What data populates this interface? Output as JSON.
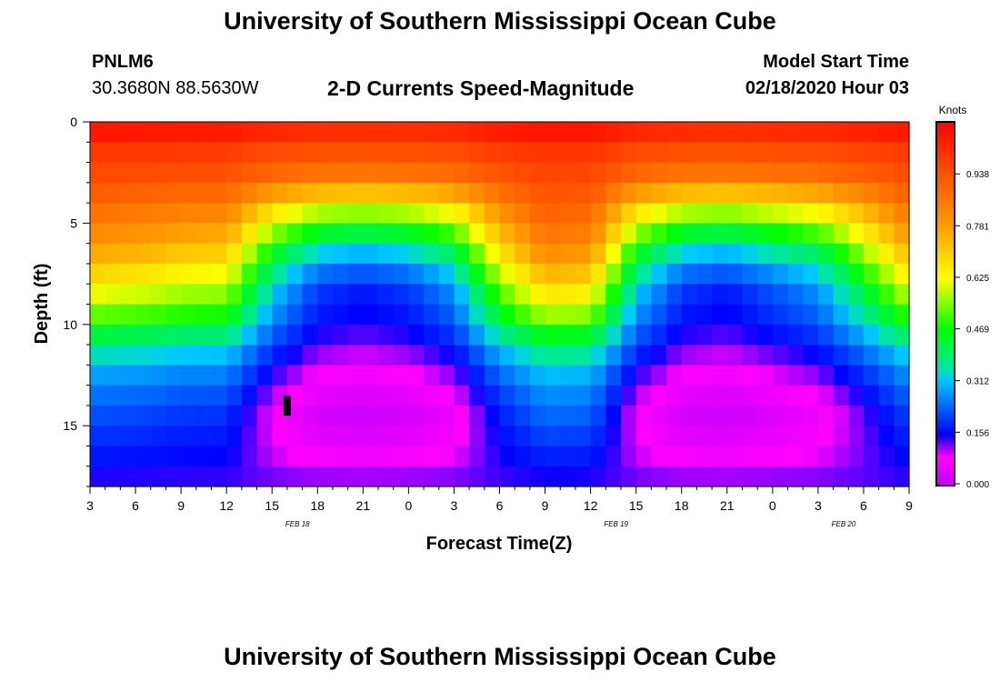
{
  "header": {
    "title": "University of Southern Mississippi Ocean Cube",
    "station_id": "PNLM6",
    "station_coords": "30.3680N 88.5630W",
    "plot_title": "2-D Currents Speed-Magnitude",
    "model_start_label": "Model Start Time",
    "model_start_value": "02/18/2020 Hour 03"
  },
  "footer": {
    "title": "University of Southern Mississippi Ocean Cube"
  },
  "chart_data": {
    "type": "heatmap",
    "title": "2-D Currents Speed-Magnitude",
    "xlabel": "Forecast Time(Z)",
    "ylabel": "Depth (ft)",
    "x_ticks": [
      "3",
      "6",
      "9",
      "12",
      "15",
      "18",
      "21",
      "0",
      "3",
      "6",
      "9",
      "12",
      "15",
      "18",
      "21",
      "0",
      "3",
      "6",
      "9"
    ],
    "date_labels": [
      {
        "text": "FEB 18",
        "tick_index": 5
      },
      {
        "text": "FEB 19",
        "tick_index": 12
      },
      {
        "text": "FEB 20",
        "tick_index": 17
      }
    ],
    "x_range_hours": [
      0,
      54
    ],
    "y_ticks": [
      "0",
      "5",
      "10",
      "15"
    ],
    "y_tick_values": [
      0,
      5,
      10,
      15
    ],
    "ylim_ft": [
      0,
      18
    ],
    "colorbar": {
      "label": "Knots",
      "ticks": [
        "0.000",
        "0.156",
        "0.312",
        "0.469",
        "0.625",
        "0.781",
        "0.938"
      ],
      "tick_values": [
        0.0,
        0.156,
        0.312,
        0.469,
        0.625,
        0.781,
        0.938
      ],
      "range": [
        0,
        1.09
      ],
      "colors": [
        "#c000ff",
        "#ff00ff",
        "#0000ff",
        "#00c8ff",
        "#00e6aa",
        "#00ff00",
        "#ffff00",
        "#ff9900",
        "#ff5000",
        "#ff0000"
      ],
      "color_stops": [
        0.0,
        0.08,
        0.14,
        0.29,
        0.32,
        0.43,
        0.57,
        0.72,
        0.86,
        1.0
      ]
    },
    "speed_profile": {
      "depth_ft": [
        0,
        1,
        2,
        3,
        4,
        5,
        6,
        7,
        8,
        9,
        10,
        11,
        12,
        13,
        14,
        15,
        16,
        17,
        18
      ],
      "weak_flow_knots": [
        1.0,
        0.93,
        0.86,
        0.72,
        0.55,
        0.42,
        0.3,
        0.22,
        0.17,
        0.15,
        0.13,
        0.1,
        0.07,
        0.04,
        0.02,
        0.04,
        0.07,
        0.11,
        0.14
      ],
      "strong_flow_knots": [
        1.05,
        0.99,
        0.96,
        0.93,
        0.9,
        0.86,
        0.81,
        0.74,
        0.66,
        0.57,
        0.46,
        0.37,
        0.31,
        0.27,
        0.24,
        0.21,
        0.18,
        0.15,
        0.13
      ]
    },
    "flow_strength_timeline": {
      "hours": [
        0,
        4,
        6,
        9,
        12,
        15,
        18,
        21,
        24,
        27,
        30,
        33,
        36,
        39,
        42,
        45,
        48,
        51,
        54
      ],
      "strength": [
        0.9,
        0.85,
        0.8,
        0.78,
        0.3,
        0.05,
        0.0,
        0.05,
        0.2,
        0.7,
        1.0,
        0.95,
        0.3,
        0.05,
        0.0,
        0.1,
        0.2,
        0.5,
        0.85
      ]
    },
    "annotation": {
      "marker": "black bar",
      "hour": 13,
      "depth_ft": [
        13.5,
        14.5
      ]
    }
  }
}
